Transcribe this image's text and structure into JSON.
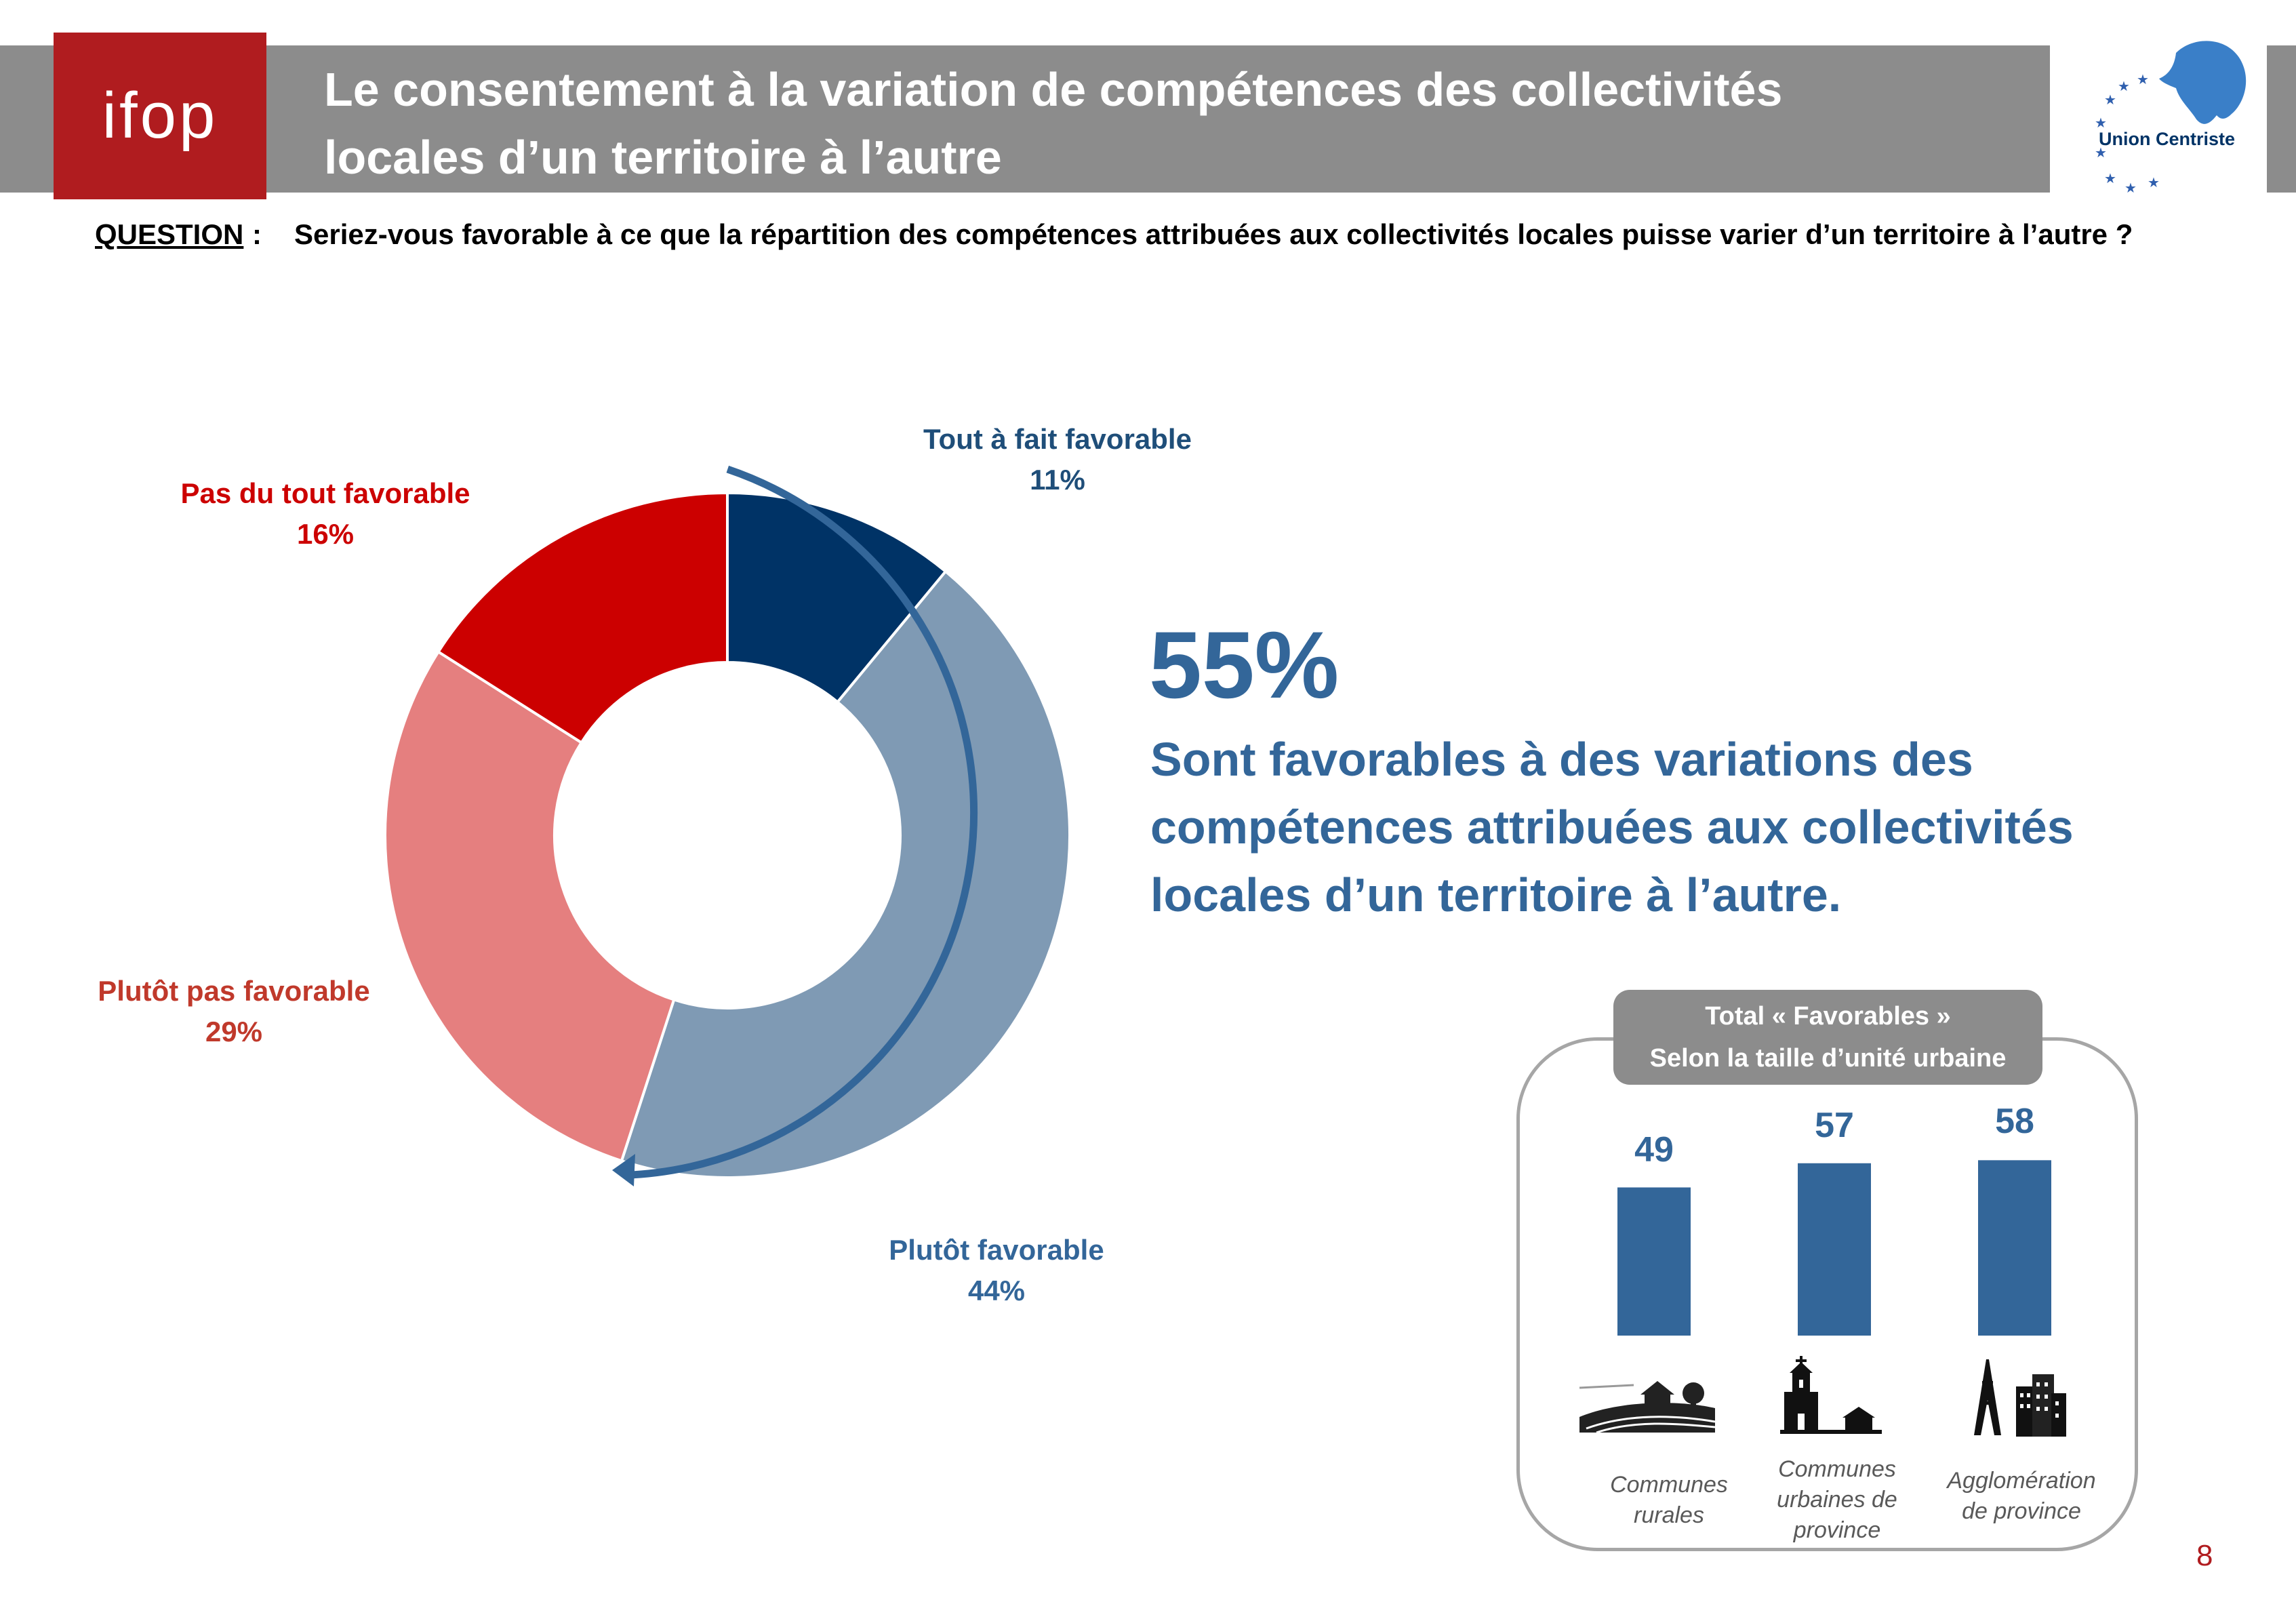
{
  "header": {
    "logo_text": "ifop",
    "title_line1": "Le consentement à la variation de compétences des collectivités",
    "title_line2": "locales d’un territoire à l’autre",
    "partner_name": "Union Centriste"
  },
  "question": {
    "label": "QUESTION",
    "colon": ":",
    "text": "Seriez-vous favorable à ce que la répartition des compétences attribuées aux collectivités locales puisse varier d’un territoire à l’autre ?"
  },
  "highlight": {
    "value": "55%",
    "text": "Sont favorables à des variations des compétences attribuées aux collectivités locales d’un territoire à l’autre."
  },
  "subchart_header": {
    "line1": "Total « Favorables »",
    "line2": "Selon la taille d’unité urbaine"
  },
  "page_number": "8",
  "colors": {
    "tout_a_fait": "#003366",
    "plutot_favorable": "#7f9ab4",
    "plutot_pas": "#e57f7f",
    "pas_du_tout": "#cc0000",
    "bars": "#336699",
    "ifop_red": "#b01c1f",
    "header_gray": "#8c8c8c"
  },
  "chart_data": [
    {
      "type": "pie",
      "variant": "donut",
      "categories": [
        "Tout à fait favorable",
        "Plutôt favorable",
        "Plutôt pas favorable",
        "Pas du tout favorable"
      ],
      "values": [
        11,
        44,
        29,
        16
      ],
      "value_labels": [
        "11%",
        "44%",
        "29%",
        "16%"
      ]
    },
    {
      "type": "bar",
      "categories": [
        "Communes rurales",
        "Communes urbaines de province",
        "Agglomération de province"
      ],
      "category_lines": [
        [
          "Communes",
          "rurales"
        ],
        [
          "Communes",
          "urbaines de",
          "province"
        ],
        [
          "Agglomération",
          "de province"
        ]
      ],
      "values": [
        49,
        57,
        58
      ],
      "icons": [
        "farm-landscape-icon",
        "church-village-icon",
        "eiffel-tower-city-icon"
      ]
    }
  ]
}
